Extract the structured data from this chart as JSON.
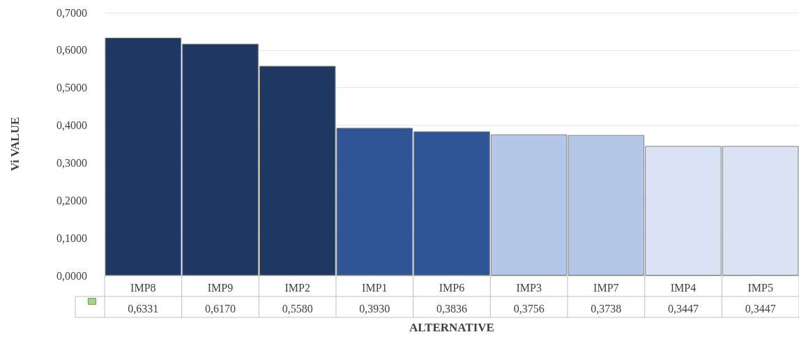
{
  "chart_data": {
    "type": "bar",
    "xlabel": "ALTERNATIVE",
    "ylabel": "Vi VALUE",
    "categories": [
      "IMP8",
      "IMP9",
      "IMP2",
      "IMP1",
      "IMP6",
      "IMP3",
      "IMP7",
      "IMP4",
      "IMP5"
    ],
    "values": [
      0.6331,
      0.617,
      0.558,
      0.393,
      0.3836,
      0.3756,
      0.3738,
      0.3447,
      0.3447
    ],
    "value_labels": [
      "0,6331",
      "0,6170",
      "0,5580",
      "0,3930",
      "0,3836",
      "0,3756",
      "0,3738",
      "0,3447",
      "0,3447"
    ],
    "colors": [
      "#1f3864",
      "#1f3864",
      "#1f3864",
      "#2f5597",
      "#2f5597",
      "#b4c7e7",
      "#b4c7e7",
      "#dae3f3",
      "#dae3f3"
    ],
    "ylim": [
      0,
      0.7
    ],
    "yticks": [
      {
        "value": 0,
        "label": "0,0000"
      },
      {
        "value": 0.1,
        "label": "0,1000"
      },
      {
        "value": 0.2,
        "label": "0,2000"
      },
      {
        "value": 0.3,
        "label": "0,3000"
      },
      {
        "value": 0.4,
        "label": "0,4000"
      },
      {
        "value": 0.5,
        "label": "0,5000"
      },
      {
        "value": 0.6,
        "label": "0,6000"
      },
      {
        "value": 0.7,
        "label": "0,7000"
      }
    ],
    "grid": "y"
  }
}
